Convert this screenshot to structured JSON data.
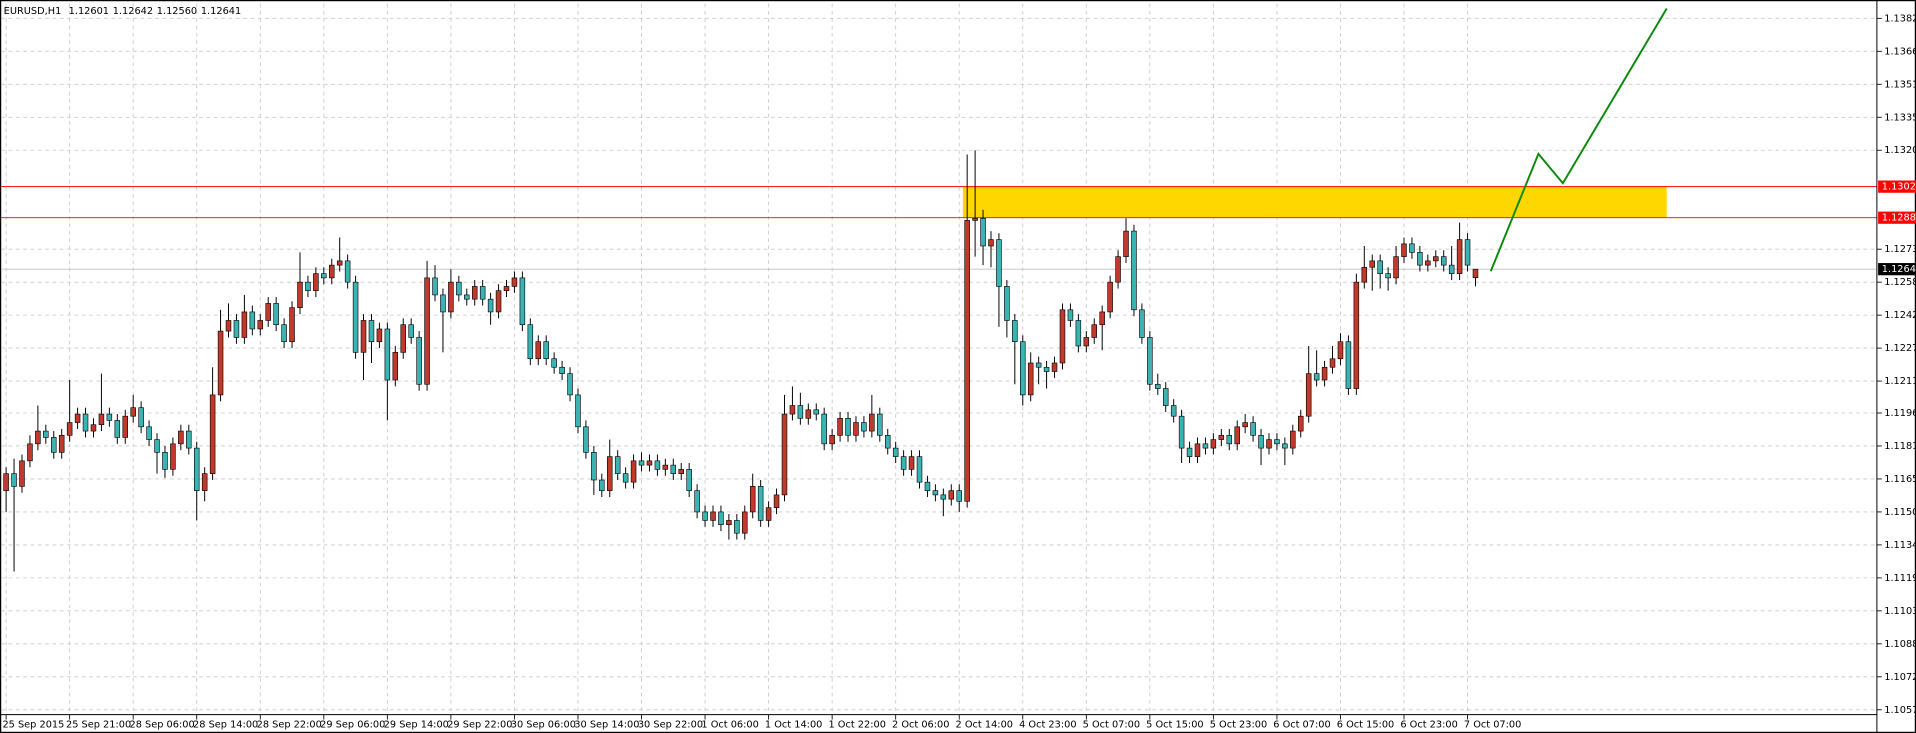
{
  "chart_data": {
    "type": "candlestick",
    "symbol": "EURUSD,H1",
    "value_labels": [
      "1.12601",
      "1.12642",
      "1.12560",
      "1.12641"
    ],
    "up_color": "#c0392b",
    "down_color": "#3bb3b3",
    "zone_color": "#ffd700",
    "current_price_color": "#c0c0c0",
    "grid": true,
    "ylim": [
      1.10547,
      1.13889
    ],
    "yticks": [
      {
        "value": 1.1382,
        "label": "1.13820"
      },
      1.13665,
      {
        "value": 1.1351,
        "label": "1.13510"
      },
      1.13355,
      {
        "value": 1.132,
        "label": "1.13200"
      },
      1.12735,
      {
        "value": 1.1258,
        "label": "1.12580"
      },
      1.12425,
      {
        "value": 1.1227,
        "label": "1.12270"
      },
      1.12115,
      1.11965,
      {
        "value": 1.1181,
        "label": "1.11810"
      },
      1.11655,
      {
        "value": 1.115,
        "label": "1.11500"
      },
      1.11345,
      {
        "value": 1.1119,
        "label": "1.11190"
      },
      1.11035,
      {
        "value": 1.1088,
        "label": "1.10880"
      },
      1.10725,
      {
        "value": 1.1057,
        "label": "1.10570"
      }
    ],
    "levels": [
      {
        "value": 1.13029,
        "color": "#ff0000"
      },
      {
        "value": 1.12883,
        "color": "#ff0000"
      }
    ],
    "categories": [
      "25 Sep 2015",
      null,
      null,
      null,
      null,
      null,
      null,
      null,
      "25 Sep 21:00",
      null,
      null,
      null,
      null,
      null,
      null,
      null,
      "28 Sep 06:00",
      null,
      null,
      null,
      null,
      null,
      null,
      null,
      "28 Sep 14:00",
      null,
      null,
      null,
      null,
      null,
      null,
      null,
      "28 Sep 22:00",
      null,
      null,
      null,
      null,
      null,
      null,
      null,
      "29 Sep 06:00",
      null,
      null,
      null,
      null,
      null,
      null,
      null,
      "29 Sep 14:00",
      null,
      null,
      null,
      null,
      null,
      null,
      null,
      "29 Sep 22:00",
      null,
      null,
      null,
      null,
      null,
      null,
      null,
      "30 Sep 06:00",
      null,
      null,
      null,
      null,
      null,
      null,
      null,
      "30 Sep 14:00",
      null,
      null,
      null,
      null,
      null,
      null,
      null,
      "30 Sep 22:00",
      null,
      null,
      null,
      null,
      null,
      null,
      null,
      "1 Oct 06:00",
      null,
      null,
      null,
      null,
      null,
      null,
      null,
      "1 Oct 14:00",
      null,
      null,
      null,
      null,
      null,
      null,
      null,
      "1 Oct 22:00",
      null,
      null,
      null,
      null,
      null,
      null,
      null,
      "2 Oct 06:00",
      null,
      null,
      null,
      null,
      null,
      null,
      null,
      "2 Oct 14:00",
      null,
      null,
      null,
      null,
      null,
      null,
      null,
      "4 Oct 23:00",
      null,
      null,
      null,
      null,
      null,
      null,
      null,
      "5 Oct 07:00",
      null,
      null,
      null,
      null,
      null,
      null,
      null,
      "5 Oct 15:00",
      null,
      null,
      null,
      null,
      null,
      null,
      null,
      "5 Oct 23:00",
      null,
      null,
      null,
      null,
      null,
      null,
      null,
      "6 Oct 07:00",
      null,
      null,
      null,
      null,
      null,
      null,
      null,
      "6 Oct 15:00",
      null,
      null,
      null,
      null,
      null,
      null,
      null,
      "6 Oct 23:00",
      null,
      null,
      null,
      null,
      null,
      null,
      null,
      "7 Oct 07:00",
      null
    ],
    "ohlc": [
      [
        1.116,
        1.1171,
        1.115,
        1.1168
      ],
      [
        1.1168,
        1.1175,
        1.1122,
        1.1162
      ],
      [
        1.1162,
        1.1177,
        1.1159,
        1.1174
      ],
      [
        1.1174,
        1.1186,
        1.1171,
        1.1182
      ],
      [
        1.1182,
        1.12,
        1.1179,
        1.1188
      ],
      [
        1.1188,
        1.1191,
        1.1182,
        1.1185
      ],
      [
        1.1185,
        1.1188,
        1.1175,
        1.1178
      ],
      [
        1.1178,
        1.1189,
        1.1175,
        1.1186
      ],
      [
        1.1186,
        1.1212,
        1.1183,
        1.1192
      ],
      [
        1.1192,
        1.1199,
        1.1189,
        1.1196
      ],
      [
        1.1196,
        1.1199,
        1.1185,
        1.1188
      ],
      [
        1.1188,
        1.1194,
        1.1185,
        1.1191
      ],
      [
        1.1191,
        1.1215,
        1.1188,
        1.1196
      ],
      [
        1.1196,
        1.1199,
        1.119,
        1.1193
      ],
      [
        1.1193,
        1.1196,
        1.1182,
        1.1185
      ],
      [
        1.1185,
        1.1198,
        1.1182,
        1.1195
      ],
      [
        1.1195,
        1.1205,
        1.1192,
        1.1199
      ],
      [
        1.1199,
        1.1202,
        1.1187,
        1.119
      ],
      [
        1.119,
        1.1193,
        1.1181,
        1.1184
      ],
      [
        1.1184,
        1.1187,
        1.1168,
        1.1178
      ],
      [
        1.1178,
        1.1181,
        1.1166,
        1.117
      ],
      [
        1.117,
        1.1185,
        1.1167,
        1.1182
      ],
      [
        1.1182,
        1.1191,
        1.1179,
        1.1188
      ],
      [
        1.1188,
        1.1191,
        1.1177,
        1.118
      ],
      [
        1.118,
        1.1183,
        1.1146,
        1.116
      ],
      [
        1.116,
        1.1171,
        1.1155,
        1.1168
      ],
      [
        1.1168,
        1.1218,
        1.1165,
        1.1205
      ],
      [
        1.1205,
        1.1245,
        1.1202,
        1.1235
      ],
      [
        1.1235,
        1.1248,
        1.1232,
        1.124
      ],
      [
        1.124,
        1.1243,
        1.1229,
        1.1232
      ],
      [
        1.1232,
        1.1252,
        1.1229,
        1.1244
      ],
      [
        1.1244,
        1.1247,
        1.1233,
        1.1236
      ],
      [
        1.1236,
        1.1243,
        1.1233,
        1.124
      ],
      [
        1.124,
        1.1251,
        1.1237,
        1.1248
      ],
      [
        1.1248,
        1.1251,
        1.1235,
        1.1238
      ],
      [
        1.1238,
        1.1241,
        1.1227,
        1.123
      ],
      [
        1.123,
        1.1249,
        1.1227,
        1.1246
      ],
      [
        1.1246,
        1.1272,
        1.1243,
        1.1258
      ],
      [
        1.1258,
        1.1261,
        1.1251,
        1.1254
      ],
      [
        1.1254,
        1.1265,
        1.1251,
        1.1262
      ],
      [
        1.1262,
        1.1265,
        1.1257,
        1.126
      ],
      [
        1.126,
        1.1269,
        1.1257,
        1.1266
      ],
      [
        1.1266,
        1.1279,
        1.1263,
        1.1268
      ],
      [
        1.1268,
        1.1271,
        1.1255,
        1.1258
      ],
      [
        1.1258,
        1.1261,
        1.1222,
        1.1225
      ],
      [
        1.1225,
        1.1243,
        1.1212,
        1.124
      ],
      [
        1.124,
        1.1243,
        1.122,
        1.123
      ],
      [
        1.123,
        1.1239,
        1.1227,
        1.1236
      ],
      [
        1.1236,
        1.1239,
        1.1193,
        1.1212
      ],
      [
        1.1212,
        1.1228,
        1.1209,
        1.1225
      ],
      [
        1.1225,
        1.1241,
        1.1222,
        1.1238
      ],
      [
        1.1238,
        1.1241,
        1.1229,
        1.1232
      ],
      [
        1.1232,
        1.1235,
        1.1207,
        1.121
      ],
      [
        1.121,
        1.1268,
        1.1207,
        1.126
      ],
      [
        1.126,
        1.1266,
        1.1249,
        1.1252
      ],
      [
        1.1252,
        1.1255,
        1.1225,
        1.1244
      ],
      [
        1.1244,
        1.1264,
        1.1241,
        1.1258
      ],
      [
        1.1258,
        1.1261,
        1.1249,
        1.1252
      ],
      [
        1.1252,
        1.1255,
        1.1247,
        1.125
      ],
      [
        1.125,
        1.1259,
        1.1247,
        1.1256
      ],
      [
        1.1256,
        1.1259,
        1.1247,
        1.125
      ],
      [
        1.125,
        1.1253,
        1.1238,
        1.1244
      ],
      [
        1.1244,
        1.1257,
        1.1241,
        1.1254
      ],
      [
        1.1254,
        1.1259,
        1.1251,
        1.1256
      ],
      [
        1.1256,
        1.1263,
        1.1253,
        1.126
      ],
      [
        1.126,
        1.1263,
        1.1235,
        1.1238
      ],
      [
        1.1238,
        1.1241,
        1.1219,
        1.1222
      ],
      [
        1.1222,
        1.1233,
        1.1219,
        1.123
      ],
      [
        1.123,
        1.1233,
        1.1219,
        1.1222
      ],
      [
        1.1222,
        1.1225,
        1.1215,
        1.1218
      ],
      [
        1.1218,
        1.1221,
        1.1212,
        1.1215
      ],
      [
        1.1215,
        1.1218,
        1.1202,
        1.1205
      ],
      [
        1.1205,
        1.1208,
        1.1187,
        1.119
      ],
      [
        1.119,
        1.1193,
        1.1175,
        1.1178
      ],
      [
        1.1178,
        1.1181,
        1.1158,
        1.1165
      ],
      [
        1.1165,
        1.1168,
        1.1157,
        1.116
      ],
      [
        1.116,
        1.1184,
        1.1157,
        1.1176
      ],
      [
        1.1176,
        1.1179,
        1.1165,
        1.1168
      ],
      [
        1.1168,
        1.1171,
        1.1161,
        1.1164
      ],
      [
        1.1164,
        1.1177,
        1.1161,
        1.1174
      ],
      [
        1.1174,
        1.1178,
        1.1169,
        1.1172
      ],
      [
        1.1172,
        1.1177,
        1.1169,
        1.1174
      ],
      [
        1.1174,
        1.1177,
        1.1167,
        1.117
      ],
      [
        1.117,
        1.1175,
        1.1167,
        1.1172
      ],
      [
        1.1172,
        1.1175,
        1.1165,
        1.1168
      ],
      [
        1.1168,
        1.1173,
        1.1165,
        1.117
      ],
      [
        1.117,
        1.1173,
        1.1157,
        1.116
      ],
      [
        1.116,
        1.1163,
        1.1147,
        1.115
      ],
      [
        1.115,
        1.1153,
        1.1143,
        1.1146
      ],
      [
        1.1146,
        1.1153,
        1.1143,
        1.115
      ],
      [
        1.115,
        1.1153,
        1.1141,
        1.1144
      ],
      [
        1.1144,
        1.1149,
        1.1137,
        1.1146
      ],
      [
        1.1146,
        1.1149,
        1.1137,
        1.114
      ],
      [
        1.114,
        1.1153,
        1.1137,
        1.115
      ],
      [
        1.115,
        1.1168,
        1.1147,
        1.1162
      ],
      [
        1.1162,
        1.1165,
        1.1143,
        1.1146
      ],
      [
        1.1146,
        1.1155,
        1.1143,
        1.1152
      ],
      [
        1.1152,
        1.1161,
        1.1149,
        1.1158
      ],
      [
        1.1158,
        1.1205,
        1.1155,
        1.1196
      ],
      [
        1.1196,
        1.1209,
        1.1193,
        1.12
      ],
      [
        1.12,
        1.1206,
        1.1191,
        1.1194
      ],
      [
        1.1194,
        1.1201,
        1.1191,
        1.1198
      ],
      [
        1.1198,
        1.1201,
        1.1193,
        1.1196
      ],
      [
        1.1196,
        1.1199,
        1.1179,
        1.1182
      ],
      [
        1.1182,
        1.1189,
        1.1179,
        1.1186
      ],
      [
        1.1186,
        1.1197,
        1.1183,
        1.1194
      ],
      [
        1.1194,
        1.1197,
        1.1183,
        1.1186
      ],
      [
        1.1186,
        1.1195,
        1.1183,
        1.1192
      ],
      [
        1.1192,
        1.1195,
        1.1185,
        1.1188
      ],
      [
        1.1188,
        1.1205,
        1.1185,
        1.1196
      ],
      [
        1.1196,
        1.1199,
        1.1183,
        1.1186
      ],
      [
        1.1186,
        1.1189,
        1.1177,
        1.118
      ],
      [
        1.118,
        1.1183,
        1.1173,
        1.1176
      ],
      [
        1.1176,
        1.1179,
        1.1167,
        1.117
      ],
      [
        1.117,
        1.1179,
        1.1167,
        1.1176
      ],
      [
        1.1176,
        1.1179,
        1.1161,
        1.1164
      ],
      [
        1.1164,
        1.1167,
        1.1157,
        1.116
      ],
      [
        1.116,
        1.1163,
        1.1155,
        1.1158
      ],
      [
        1.1158,
        1.1161,
        1.1148,
        1.1156
      ],
      [
        1.1156,
        1.1163,
        1.1153,
        1.116
      ],
      [
        1.116,
        1.1163,
        1.115,
        1.1155
      ],
      [
        1.1155,
        1.1318,
        1.1152,
        1.1287
      ],
      [
        1.1287,
        1.132,
        1.127,
        1.1288
      ],
      [
        1.1288,
        1.1292,
        1.1266,
        1.1275
      ],
      [
        1.1275,
        1.1282,
        1.1265,
        1.1278
      ],
      [
        1.1278,
        1.1281,
        1.1237,
        1.1256
      ],
      [
        1.1256,
        1.1259,
        1.1232,
        1.124
      ],
      [
        1.124,
        1.1243,
        1.121,
        1.123
      ],
      [
        1.123,
        1.1233,
        1.12,
        1.1205
      ],
      [
        1.1205,
        1.1225,
        1.1202,
        1.122
      ],
      [
        1.122,
        1.1223,
        1.121,
        1.1218
      ],
      [
        1.1218,
        1.1221,
        1.1208,
        1.1216
      ],
      [
        1.1216,
        1.1223,
        1.1213,
        1.122
      ],
      [
        1.122,
        1.1248,
        1.1217,
        1.1245
      ],
      [
        1.1245,
        1.1248,
        1.1237,
        1.124
      ],
      [
        1.124,
        1.1243,
        1.1225,
        1.1228
      ],
      [
        1.1228,
        1.1235,
        1.1225,
        1.1232
      ],
      [
        1.1232,
        1.1241,
        1.1229,
        1.1238
      ],
      [
        1.1238,
        1.1247,
        1.1226,
        1.1244
      ],
      [
        1.1244,
        1.1261,
        1.1241,
        1.1258
      ],
      [
        1.1258,
        1.1273,
        1.1255,
        1.127
      ],
      [
        1.127,
        1.1288,
        1.1267,
        1.1282
      ],
      [
        1.1282,
        1.1285,
        1.1242,
        1.1245
      ],
      [
        1.1245,
        1.1248,
        1.1229,
        1.1232
      ],
      [
        1.1232,
        1.1235,
        1.1207,
        1.121
      ],
      [
        1.121,
        1.1215,
        1.1205,
        1.1208
      ],
      [
        1.1208,
        1.1211,
        1.1197,
        1.12
      ],
      [
        1.12,
        1.1203,
        1.1192,
        1.1195
      ],
      [
        1.1195,
        1.1198,
        1.1173,
        1.118
      ],
      [
        1.118,
        1.1183,
        1.1173,
        1.1176
      ],
      [
        1.1176,
        1.1185,
        1.1173,
        1.1182
      ],
      [
        1.1182,
        1.1185,
        1.1177,
        1.118
      ],
      [
        1.118,
        1.1187,
        1.1177,
        1.1184
      ],
      [
        1.1184,
        1.1189,
        1.1181,
        1.1186
      ],
      [
        1.1186,
        1.1189,
        1.1179,
        1.1182
      ],
      [
        1.1182,
        1.1193,
        1.1179,
        1.119
      ],
      [
        1.119,
        1.1196,
        1.1187,
        1.1192
      ],
      [
        1.1192,
        1.1195,
        1.1183,
        1.1186
      ],
      [
        1.1186,
        1.1189,
        1.1172,
        1.118
      ],
      [
        1.118,
        1.1187,
        1.1177,
        1.1184
      ],
      [
        1.1184,
        1.1187,
        1.1179,
        1.1182
      ],
      [
        1.1182,
        1.1185,
        1.1172,
        1.118
      ],
      [
        1.118,
        1.1191,
        1.1177,
        1.1188
      ],
      [
        1.1188,
        1.1198,
        1.1185,
        1.1195
      ],
      [
        1.1195,
        1.1228,
        1.1192,
        1.1215
      ],
      [
        1.1215,
        1.1226,
        1.1209,
        1.1212
      ],
      [
        1.1212,
        1.1221,
        1.1209,
        1.1218
      ],
      [
        1.1218,
        1.1228,
        1.1215,
        1.1222
      ],
      [
        1.1222,
        1.1234,
        1.1219,
        1.123
      ],
      [
        1.123,
        1.1233,
        1.1205,
        1.1208
      ],
      [
        1.1208,
        1.1262,
        1.1205,
        1.1258
      ],
      [
        1.1258,
        1.1275,
        1.1255,
        1.1265
      ],
      [
        1.1265,
        1.1271,
        1.1254,
        1.1268
      ],
      [
        1.1268,
        1.1271,
        1.1255,
        1.1262
      ],
      [
        1.1262,
        1.1265,
        1.1254,
        1.126
      ],
      [
        1.126,
        1.1275,
        1.1257,
        1.127
      ],
      [
        1.127,
        1.1279,
        1.1267,
        1.1276
      ],
      [
        1.1276,
        1.1279,
        1.1269,
        1.1272
      ],
      [
        1.1272,
        1.1275,
        1.1263,
        1.1266
      ],
      [
        1.1266,
        1.1271,
        1.1263,
        1.1268
      ],
      [
        1.1268,
        1.1273,
        1.1265,
        1.127
      ],
      [
        1.127,
        1.1273,
        1.1263,
        1.1266
      ],
      [
        1.1266,
        1.1275,
        1.1259,
        1.1262
      ],
      [
        1.1262,
        1.1286,
        1.1259,
        1.1278
      ],
      [
        1.1278,
        1.1281,
        1.1263,
        1.1266
      ],
      [
        1.12601,
        1.12642,
        1.1256,
        1.12641
      ]
    ]
  }
}
